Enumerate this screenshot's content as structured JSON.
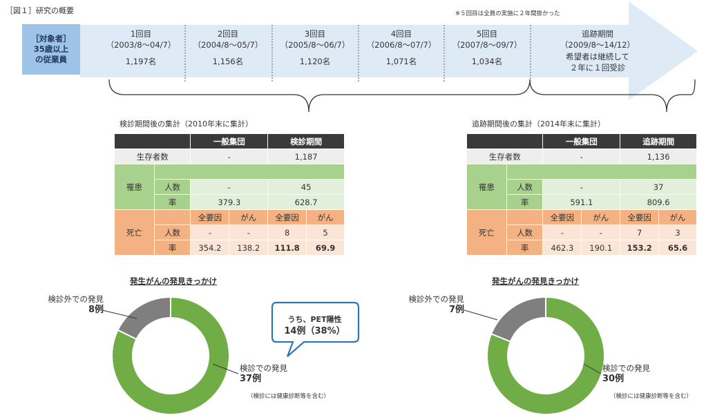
{
  "figure_title": "［図１］研究の概要",
  "note": "※５回目は全員の実施に２年間掛かった",
  "target": {
    "line1": "［対象者］",
    "line2": "35歳以上",
    "line3": "の従業員"
  },
  "phases": [
    {
      "label": "1回目",
      "period": "（2003/8～04/7）",
      "count": "1,197名"
    },
    {
      "label": "2回目",
      "period": "（2004/8～05/7）",
      "count": "1,156名"
    },
    {
      "label": "3回目",
      "period": "（2005/8～06/7）",
      "count": "1,120名"
    },
    {
      "label": "4回目",
      "period": "（2006/8～07/7）",
      "count": "1,071名"
    },
    {
      "label": "5回目",
      "period": "（2007/8～09/7）",
      "count": "1,034名"
    }
  ],
  "followup": {
    "label": "追跡期間",
    "period": "（2009/8～14/12）",
    "desc1": "希望者は継続して",
    "desc2": "２年に１回受診"
  },
  "table_left": {
    "title": "検診期間後の集計（2010年末に集計）",
    "col_general": "一般集団",
    "col_period": "検診期間",
    "survivors_label": "生存者数",
    "survivors": [
      "-",
      "1,187"
    ],
    "morbidity_label": "罹患",
    "count_label": "人数",
    "rate_label": "率",
    "morbidity_count": [
      "-",
      "45"
    ],
    "morbidity_rate": [
      "379.3",
      "628.7"
    ],
    "death_label": "死亡",
    "all_causes": "全要因",
    "cancer": "がん",
    "death_count": [
      "-",
      "-",
      "8",
      "5"
    ],
    "death_rate": [
      "354.2",
      "138.2",
      "111.8",
      "69.9"
    ]
  },
  "table_right": {
    "title": "追跡期間後の集計（2014年末に集計）",
    "col_general": "一般集団",
    "col_period": "追跡期間",
    "survivors_label": "生存者数",
    "survivors": [
      "-",
      "1,136"
    ],
    "morbidity_label": "罹患",
    "count_label": "人数",
    "rate_label": "率",
    "morbidity_count": [
      "-",
      "37"
    ],
    "morbidity_rate": [
      "591.1",
      "809.6"
    ],
    "death_label": "死亡",
    "all_causes": "全要因",
    "cancer": "がん",
    "death_count": [
      "-",
      "-",
      "7",
      "3"
    ],
    "death_rate": [
      "462.3",
      "190.1",
      "153.2",
      "65.6"
    ]
  },
  "pie_left": {
    "title": "発生がんの発見きっかけ",
    "outside_label": "検診外での発見",
    "outside_value": "8例",
    "inside_label": "検診での発見",
    "inside_value": "37例",
    "note": "（検診には健康診断等を含む）"
  },
  "pie_right": {
    "title": "発生がんの発見きっかけ",
    "outside_label": "検診外での発見",
    "outside_value": "7例",
    "inside_label": "検診での発見",
    "inside_value": "30例",
    "note": "（検診には健康診断等を含む）"
  },
  "callout": {
    "line1": "うち、PET陽性",
    "line2": "14例（38%）"
  },
  "chart_data": [
    {
      "type": "pie",
      "title": "発生がんの発見きっかけ",
      "categories": [
        "検診での発見",
        "検診外での発見"
      ],
      "values": [
        37,
        8
      ],
      "colors": [
        "#70ad47",
        "#7f7f7f"
      ],
      "donut": true
    },
    {
      "type": "pie",
      "title": "発生がんの発見きっかけ",
      "categories": [
        "検診での発見",
        "検診外での発見"
      ],
      "values": [
        30,
        7
      ],
      "colors": [
        "#70ad47",
        "#7f7f7f"
      ],
      "donut": true
    }
  ],
  "colors": {
    "arrow": "#deebf7",
    "target_box": "#9dc3e6",
    "header": "#3a3a3a",
    "green": "#a9d18e",
    "green_light": "#e2efda",
    "orange": "#f4b183",
    "orange_light": "#fbe5d6",
    "donut_green": "#70ad47",
    "donut_gray": "#7f7f7f",
    "callout_border": "#2e75b6"
  }
}
